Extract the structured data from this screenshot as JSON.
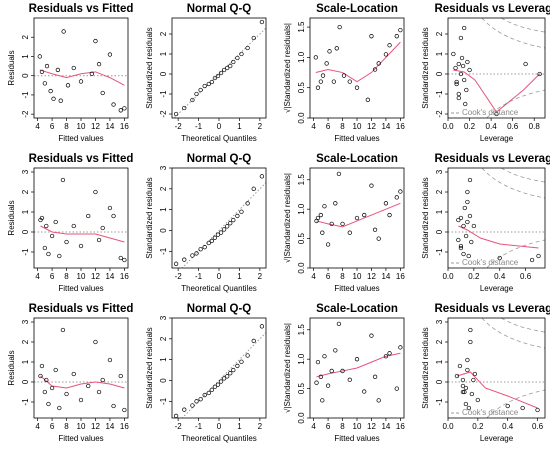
{
  "chart_data": [
    {
      "type": "residuals",
      "title": "Residuals vs Fitted",
      "xlabel": "Fitted values",
      "ylabel": "Residuals",
      "xlim": [
        3.5,
        16.5
      ],
      "ylim": [
        -2.2,
        3
      ],
      "xticks": [
        4,
        6,
        8,
        10,
        12,
        14,
        16
      ],
      "yticks": [
        -2,
        -1,
        0,
        1,
        2
      ],
      "hline": 0,
      "point_color": "#000000",
      "smooth_color": "#e8537a",
      "points": {
        "x": [
          4.3,
          4.6,
          5,
          5.3,
          5.8,
          6.2,
          6.8,
          7.2,
          7.6,
          8.2,
          9,
          10,
          11.5,
          12,
          12.5,
          13,
          14,
          14.5,
          15.5,
          16
        ],
        "y": [
          1,
          0.2,
          -0.4,
          0.5,
          -0.8,
          -1.2,
          0.3,
          -1.3,
          2.3,
          -0.5,
          0.4,
          -0.3,
          0.1,
          1.8,
          0.6,
          -0.9,
          1.1,
          -1.5,
          -1.8,
          -1.7
        ]
      },
      "smooth": {
        "x": [
          4.3,
          6,
          8,
          10,
          12,
          14,
          16
        ],
        "y": [
          0.3,
          0.1,
          -0.1,
          0.1,
          0.2,
          -0.1,
          -0.5
        ]
      }
    },
    {
      "type": "qq",
      "title": "Normal Q-Q",
      "xlabel": "Theoretical Quantiles",
      "ylabel": "Standardized residuals",
      "xlim": [
        -2.3,
        2.3
      ],
      "ylim": [
        -2.2,
        2.8
      ],
      "xticks": [
        -2,
        -1,
        0,
        1,
        2
      ],
      "yticks": [
        -2,
        -1,
        0,
        1,
        2
      ],
      "point_color": "#000000",
      "points": {
        "x": [
          -2.1,
          -1.7,
          -1.3,
          -1.1,
          -0.9,
          -0.7,
          -0.5,
          -0.35,
          -0.2,
          -0.05,
          0.1,
          0.25,
          0.4,
          0.55,
          0.7,
          0.9,
          1.1,
          1.4,
          1.7,
          2.1
        ],
        "y": [
          -2,
          -1.7,
          -1.3,
          -1,
          -0.8,
          -0.6,
          -0.5,
          -0.4,
          -0.2,
          -0.1,
          0.05,
          0.2,
          0.3,
          0.4,
          0.6,
          0.8,
          1,
          1.3,
          1.8,
          2.6
        ]
      },
      "ref_line": {
        "x": [
          -2.3,
          2.3
        ],
        "y": [
          -2.3,
          2.3
        ]
      }
    },
    {
      "type": "residuals",
      "title": "Scale-Location",
      "xlabel": "Fitted values",
      "ylabel": "√|Standardized residuals|",
      "xlim": [
        3.5,
        16.5
      ],
      "ylim": [
        0,
        1.65
      ],
      "xticks": [
        4,
        6,
        8,
        10,
        12,
        14,
        16
      ],
      "yticks": [
        {
          "value": 0,
          "label": "0.0"
        },
        0.5,
        {
          "value": 1,
          "label": "1.0"
        },
        1.5
      ],
      "point_color": "#000000",
      "smooth_color": "#e8537a",
      "points": {
        "x": [
          4.3,
          4.6,
          5,
          5.3,
          5.8,
          6.2,
          6.8,
          7.2,
          7.6,
          8.2,
          9,
          10,
          11.5,
          12,
          12.5,
          13,
          14,
          14.5,
          15.5,
          16
        ],
        "y": [
          1,
          0.5,
          0.6,
          0.7,
          0.9,
          1.1,
          0.6,
          1.15,
          1.5,
          0.7,
          0.6,
          0.5,
          0.3,
          1.35,
          0.8,
          0.9,
          1.05,
          1.2,
          1.35,
          1.45
        ]
      },
      "smooth": {
        "x": [
          4.3,
          6,
          8,
          10,
          12,
          14,
          16
        ],
        "y": [
          0.75,
          0.8,
          0.75,
          0.6,
          0.75,
          1,
          1.25
        ]
      }
    },
    {
      "type": "leverage",
      "title": "Residuals vs Leverage",
      "xlabel": "Leverage",
      "ylabel": "Standardized residuals",
      "xlim": [
        0,
        0.9
      ],
      "ylim": [
        -2.2,
        2.8
      ],
      "xticks": [
        {
          "value": 0,
          "label": "0.0"
        },
        0.2,
        0.4,
        0.6,
        0.8
      ],
      "yticks": [
        -2,
        -1,
        0,
        1,
        2
      ],
      "hline": 0,
      "annotation": "Cook's distance",
      "point_color": "#000000",
      "smooth_color": "#e8537a",
      "points": {
        "x": [
          0.05,
          0.07,
          0.08,
          0.1,
          0.1,
          0.12,
          0.13,
          0.15,
          0.15,
          0.17,
          0.18,
          0.2,
          0.12,
          0.1,
          0.08,
          0.14,
          0.45,
          0.72,
          0.85,
          0.16
        ],
        "y": [
          1,
          0.3,
          -0.5,
          0.5,
          -1,
          0,
          0.8,
          -0.3,
          2.3,
          -0.8,
          0.6,
          0.2,
          1.8,
          -1.2,
          -0.4,
          0.4,
          -2,
          0.5,
          0,
          -1.5
        ]
      },
      "smooth": {
        "x": [
          0.05,
          0.15,
          0.25,
          0.45,
          0.7,
          0.85
        ],
        "y": [
          0.2,
          0.1,
          -0.3,
          -1.9,
          -0.8,
          0
        ]
      }
    },
    {
      "type": "residuals",
      "title": "Residuals vs Fitted",
      "xlabel": "Fitted values",
      "ylabel": "Residuals",
      "xlim": [
        3.5,
        16.5
      ],
      "ylim": [
        -1.8,
        3.2
      ],
      "xticks": [
        4,
        6,
        8,
        10,
        12,
        14,
        16
      ],
      "yticks": [
        -1,
        0,
        1,
        2,
        3
      ],
      "hline": 0,
      "point_color": "#000000",
      "smooth_color": "#e8537a",
      "points": {
        "x": [
          4.4,
          4.6,
          5,
          5.2,
          5.5,
          6,
          6.5,
          7,
          7.5,
          8,
          9,
          10,
          11,
          12,
          12.5,
          13,
          14,
          14.5,
          15.5,
          16
        ],
        "y": [
          0.6,
          0.7,
          -0.8,
          0.3,
          -1.1,
          -0.2,
          0.5,
          -1.2,
          2.6,
          -0.5,
          0.3,
          -0.7,
          0.8,
          2,
          -0.4,
          0.2,
          1.2,
          0.8,
          -1.3,
          -1.4
        ]
      },
      "smooth": {
        "x": [
          4.4,
          6,
          8,
          10,
          12,
          14,
          16
        ],
        "y": [
          0.3,
          0,
          -0.1,
          -0.1,
          -0.1,
          -0.3,
          -0.5
        ]
      }
    },
    {
      "type": "qq",
      "title": "Normal Q-Q",
      "xlabel": "Theoretical Quantiles",
      "ylabel": "Standardized residuals",
      "xlim": [
        -2.3,
        2.3
      ],
      "ylim": [
        -1.8,
        3
      ],
      "xticks": [
        -2,
        -1,
        0,
        1,
        2
      ],
      "yticks": [
        -1,
        0,
        1,
        2,
        3
      ],
      "point_color": "#000000",
      "points": {
        "x": [
          -2.1,
          -1.7,
          -1.3,
          -1.1,
          -0.9,
          -0.7,
          -0.5,
          -0.35,
          -0.2,
          -0.05,
          0.1,
          0.25,
          0.4,
          0.55,
          0.7,
          0.9,
          1.1,
          1.4,
          1.7,
          2.1
        ],
        "y": [
          -1.6,
          -1.4,
          -1.2,
          -1.1,
          -0.9,
          -0.8,
          -0.6,
          -0.5,
          -0.35,
          -0.2,
          -0.1,
          0.05,
          0.2,
          0.35,
          0.5,
          0.7,
          0.9,
          1.3,
          2,
          2.6
        ]
      },
      "ref_line": {
        "x": [
          -2.3,
          2.3
        ],
        "y": [
          -2.3,
          2.3
        ]
      }
    },
    {
      "type": "residuals",
      "title": "Scale-Location",
      "xlabel": "Fitted values",
      "ylabel": "√|Standardized residuals|",
      "xlim": [
        3.5,
        16.5
      ],
      "ylim": [
        0,
        1.7
      ],
      "xticks": [
        4,
        6,
        8,
        10,
        12,
        14,
        16
      ],
      "yticks": [
        {
          "value": 0,
          "label": "0.0"
        },
        0.5,
        {
          "value": 1,
          "label": "1.0"
        },
        1.5
      ],
      "point_color": "#000000",
      "smooth_color": "#e8537a",
      "points": {
        "x": [
          4.4,
          4.6,
          5,
          5.2,
          5.5,
          6,
          6.5,
          7,
          7.5,
          8,
          9,
          10,
          11,
          12,
          12.5,
          13,
          14,
          14.5,
          15.5,
          16
        ],
        "y": [
          0.8,
          0.85,
          0.9,
          0.6,
          1.05,
          0.4,
          0.75,
          1.1,
          1.6,
          0.75,
          0.6,
          0.85,
          0.9,
          1.4,
          0.65,
          0.5,
          1.1,
          0.9,
          1.2,
          1.3
        ]
      },
      "smooth": {
        "x": [
          4.4,
          6,
          8,
          10,
          12,
          14,
          16
        ],
        "y": [
          0.8,
          0.75,
          0.7,
          0.8,
          0.9,
          1,
          1.1
        ]
      }
    },
    {
      "type": "leverage",
      "title": "Residuals vs Leverage",
      "xlabel": "Leverage",
      "ylabel": "Standardized residuals",
      "xlim": [
        0,
        0.75
      ],
      "ylim": [
        -1.8,
        3.2
      ],
      "xticks": [
        {
          "value": 0,
          "label": "0.0"
        },
        0.2,
        0.4,
        0.6
      ],
      "yticks": [
        -1,
        0,
        1,
        2,
        3
      ],
      "hline": 0,
      "annotation": "Cook's distance",
      "point_color": "#000000",
      "smooth_color": "#e8537a",
      "points": {
        "x": [
          0.08,
          0.1,
          0.1,
          0.12,
          0.12,
          0.14,
          0.15,
          0.16,
          0.17,
          0.18,
          0.2,
          0.1,
          0.15,
          0.08,
          0.13,
          0.17,
          0.4,
          0.65,
          0.7,
          0.15
        ],
        "y": [
          0.6,
          0.7,
          -0.8,
          0.3,
          -1.1,
          -0.2,
          0.5,
          -1.2,
          2.6,
          -0.5,
          0.3,
          -0.7,
          2,
          -0.4,
          1.2,
          0.8,
          -1.3,
          -1.4,
          -1.2,
          1.5
        ]
      },
      "smooth": {
        "x": [
          0.08,
          0.15,
          0.25,
          0.4,
          0.55,
          0.7
        ],
        "y": [
          0.3,
          0.1,
          -0.3,
          -0.6,
          -0.7,
          -0.8
        ]
      }
    },
    {
      "type": "residuals",
      "title": "Residuals vs Fitted",
      "xlabel": "Fitted values",
      "ylabel": "Residuals",
      "xlim": [
        3.5,
        16.5
      ],
      "ylim": [
        -1.8,
        3.2
      ],
      "xticks": [
        4,
        6,
        8,
        10,
        12,
        14,
        16
      ],
      "yticks": [
        -1,
        0,
        1,
        2,
        3
      ],
      "hline": 0,
      "point_color": "#000000",
      "smooth_color": "#e8537a",
      "points": {
        "x": [
          4.4,
          4.6,
          5,
          5.2,
          5.5,
          6,
          6.5,
          7,
          7.5,
          8,
          9,
          10,
          11,
          12,
          12.5,
          13,
          14,
          14.5,
          15.5,
          16
        ],
        "y": [
          0.3,
          0.8,
          -0.5,
          0.1,
          -1.1,
          -0.3,
          0.6,
          -1.3,
          2.6,
          -0.6,
          0.4,
          -0.9,
          -0.2,
          2,
          -0.5,
          0.1,
          1.1,
          -1.2,
          0.3,
          -1.4
        ]
      },
      "smooth": {
        "x": [
          4.4,
          6,
          8,
          10,
          12,
          14,
          16
        ],
        "y": [
          0.3,
          -0.2,
          -0.3,
          -0.1,
          0,
          -0.1,
          -0.3
        ]
      }
    },
    {
      "type": "qq",
      "title": "Normal Q-Q",
      "xlabel": "Theoretical Quantiles",
      "ylabel": "Standardized residuals",
      "xlim": [
        -2.3,
        2.3
      ],
      "ylim": [
        -1.8,
        3
      ],
      "xticks": [
        -2,
        -1,
        0,
        1,
        2
      ],
      "yticks": [
        -1,
        0,
        1,
        2,
        3
      ],
      "point_color": "#000000",
      "points": {
        "x": [
          -2.1,
          -1.7,
          -1.3,
          -1.1,
          -0.9,
          -0.7,
          -0.5,
          -0.35,
          -0.2,
          -0.05,
          0.1,
          0.25,
          0.4,
          0.55,
          0.7,
          0.9,
          1.1,
          1.4,
          1.7,
          2.1
        ],
        "y": [
          -1.7,
          -1.4,
          -1.2,
          -1,
          -0.9,
          -0.7,
          -0.6,
          -0.45,
          -0.3,
          -0.2,
          -0.05,
          0.1,
          0.2,
          0.35,
          0.5,
          0.7,
          0.9,
          1.2,
          1.9,
          2.6
        ]
      },
      "ref_line": {
        "x": [
          -2.3,
          2.3
        ],
        "y": [
          -2.3,
          2.3
        ]
      }
    },
    {
      "type": "residuals",
      "title": "Scale-Location",
      "xlabel": "Fitted values",
      "ylabel": "√|Standardized residuals|",
      "xlim": [
        3.5,
        16.5
      ],
      "ylim": [
        0,
        1.7
      ],
      "xticks": [
        4,
        6,
        8,
        10,
        12,
        14,
        16
      ],
      "yticks": [
        {
          "value": 0,
          "label": "0.0"
        },
        0.5,
        {
          "value": 1,
          "label": "1.0"
        },
        1.5
      ],
      "point_color": "#000000",
      "smooth_color": "#e8537a",
      "points": {
        "x": [
          4.4,
          4.6,
          5,
          5.2,
          5.5,
          6,
          6.5,
          7,
          7.5,
          8,
          9,
          10,
          11,
          12,
          12.5,
          13,
          14,
          14.5,
          15.5,
          16
        ],
        "y": [
          0.6,
          0.95,
          0.7,
          0.3,
          1.05,
          0.55,
          0.8,
          1.15,
          1.6,
          0.8,
          0.65,
          1,
          0.45,
          1.4,
          0.7,
          0.3,
          1.05,
          1.1,
          0.5,
          1.2
        ]
      },
      "smooth": {
        "x": [
          4.4,
          6,
          8,
          10,
          12,
          14,
          16
        ],
        "y": [
          0.7,
          0.75,
          0.8,
          0.85,
          0.95,
          1.05,
          1.1
        ]
      }
    },
    {
      "type": "leverage",
      "title": "Residuals vs Leverage",
      "xlabel": "Leverage",
      "ylabel": "Standardized residuals",
      "xlim": [
        0,
        0.65
      ],
      "ylim": [
        -1.8,
        3.2
      ],
      "xticks": [
        {
          "value": 0,
          "label": "0.0"
        },
        0.2,
        0.4,
        0.6
      ],
      "yticks": [
        -1,
        0,
        1,
        2,
        3
      ],
      "hline": 0,
      "annotation": "Cook's distance",
      "point_color": "#000000",
      "smooth_color": "#e8537a",
      "points": {
        "x": [
          0.06,
          0.08,
          0.1,
          0.1,
          0.12,
          0.12,
          0.13,
          0.14,
          0.15,
          0.16,
          0.18,
          0.2,
          0.1,
          0.15,
          0.11,
          0.17,
          0.4,
          0.5,
          0.6,
          0.13
        ],
        "y": [
          0.3,
          0.8,
          -0.5,
          0.1,
          -1.1,
          -0.3,
          0.6,
          -1.3,
          2.6,
          -0.6,
          0.4,
          -0.9,
          -0.2,
          2,
          -0.5,
          0.1,
          -1.2,
          -1.3,
          -1.4,
          1.1
        ]
      },
      "smooth": {
        "x": [
          0.06,
          0.15,
          0.25,
          0.4,
          0.6
        ],
        "y": [
          0.3,
          0.5,
          -0.3,
          -0.7,
          -1.3
        ]
      }
    }
  ]
}
